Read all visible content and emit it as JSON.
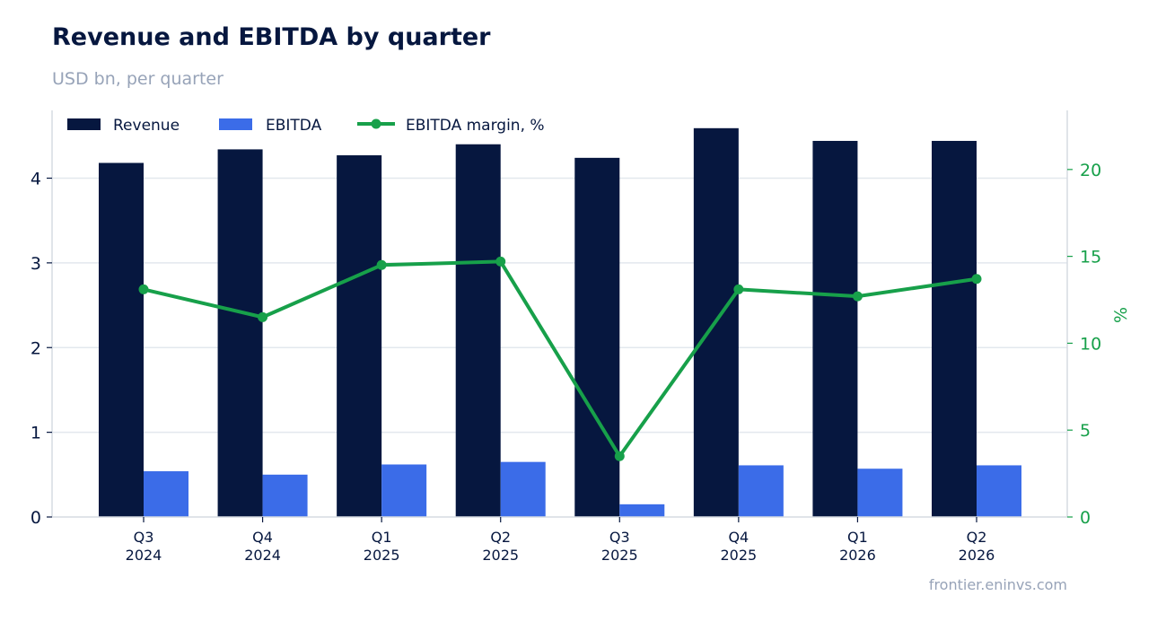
{
  "title": "Revenue and EBITDA by quarter",
  "subtitle": "USD bn, per quarter",
  "source": "frontier.eninvs.com",
  "colors": {
    "revenue": "#06173f",
    "ebitda": "#3b6ce8",
    "margin": "#17a04a",
    "grid": "#e3e8ee",
    "axis": "#d6dbe2"
  },
  "chart_data": {
    "type": "bar",
    "categories": [
      "Q3\n2024",
      "Q4\n2024",
      "Q1\n2025",
      "Q2\n2025",
      "Q3\n2025",
      "Q4\n2025",
      "Q1\n2026",
      "Q2\n2026"
    ],
    "series": [
      {
        "name": "Revenue",
        "type": "bar",
        "axis": "left",
        "values": [
          4.18,
          4.34,
          4.27,
          4.4,
          4.24,
          4.59,
          4.44,
          4.44
        ]
      },
      {
        "name": "EBITDA",
        "type": "bar",
        "axis": "left",
        "values": [
          0.54,
          0.5,
          0.62,
          0.65,
          0.15,
          0.61,
          0.57,
          0.61
        ]
      },
      {
        "name": "EBITDA margin, %",
        "type": "line",
        "axis": "right",
        "values": [
          13.1,
          11.5,
          14.5,
          14.7,
          3.5,
          13.1,
          12.7,
          13.7
        ]
      }
    ],
    "xlabel": "",
    "ylabel": "",
    "y2label": "%",
    "ylim": [
      0,
      4.8
    ],
    "yticks": [
      0,
      1,
      2,
      3,
      4
    ],
    "y2lim": [
      0,
      23.4
    ],
    "y2ticks": [
      0,
      5,
      10,
      15,
      20
    ],
    "grid": true,
    "legend_position": "top-left"
  }
}
